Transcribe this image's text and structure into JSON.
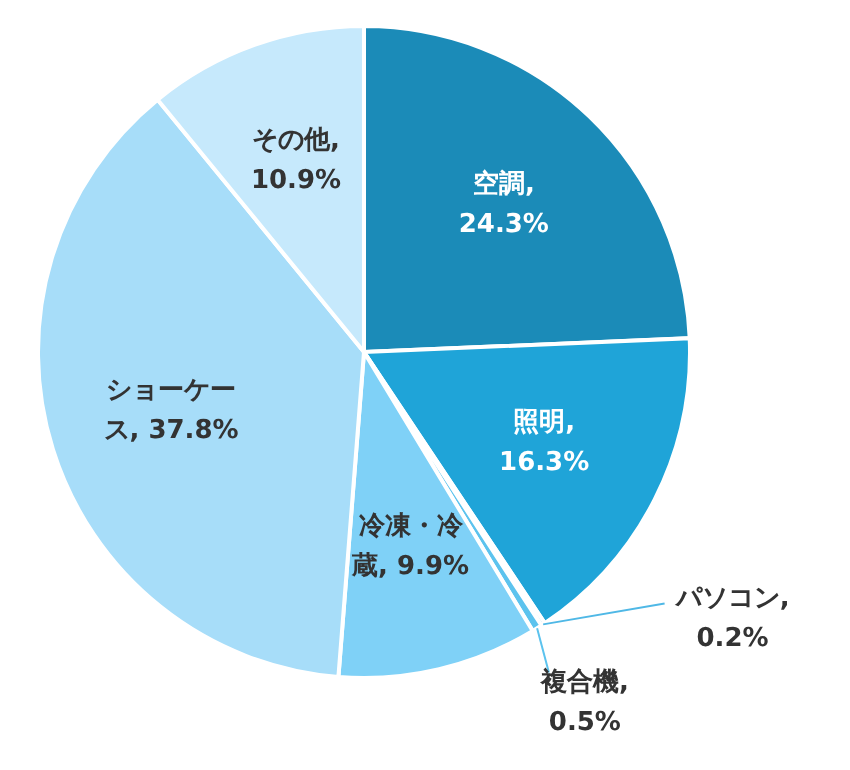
{
  "chart_data": {
    "type": "pie",
    "categories": [
      "空調",
      "照明",
      "パソコン",
      "複合機",
      "冷凍・冷蔵",
      "ショーケース",
      "その他"
    ],
    "values": [
      24.3,
      16.3,
      0.2,
      0.5,
      9.9,
      37.8,
      10.9
    ],
    "value_labels": [
      ", 24.3%",
      ", 16.3%",
      ", 0.2%",
      ", 0.5%",
      ", 9.9%",
      ", 37.8%",
      ", 10.9%"
    ],
    "colors": [
      "#1b8bb8",
      "#1fa4d8",
      "#4fb8e6",
      "#5cc3ee",
      "#7fd1f7",
      "#a7ddf9",
      "#c6e9fc"
    ]
  }
}
